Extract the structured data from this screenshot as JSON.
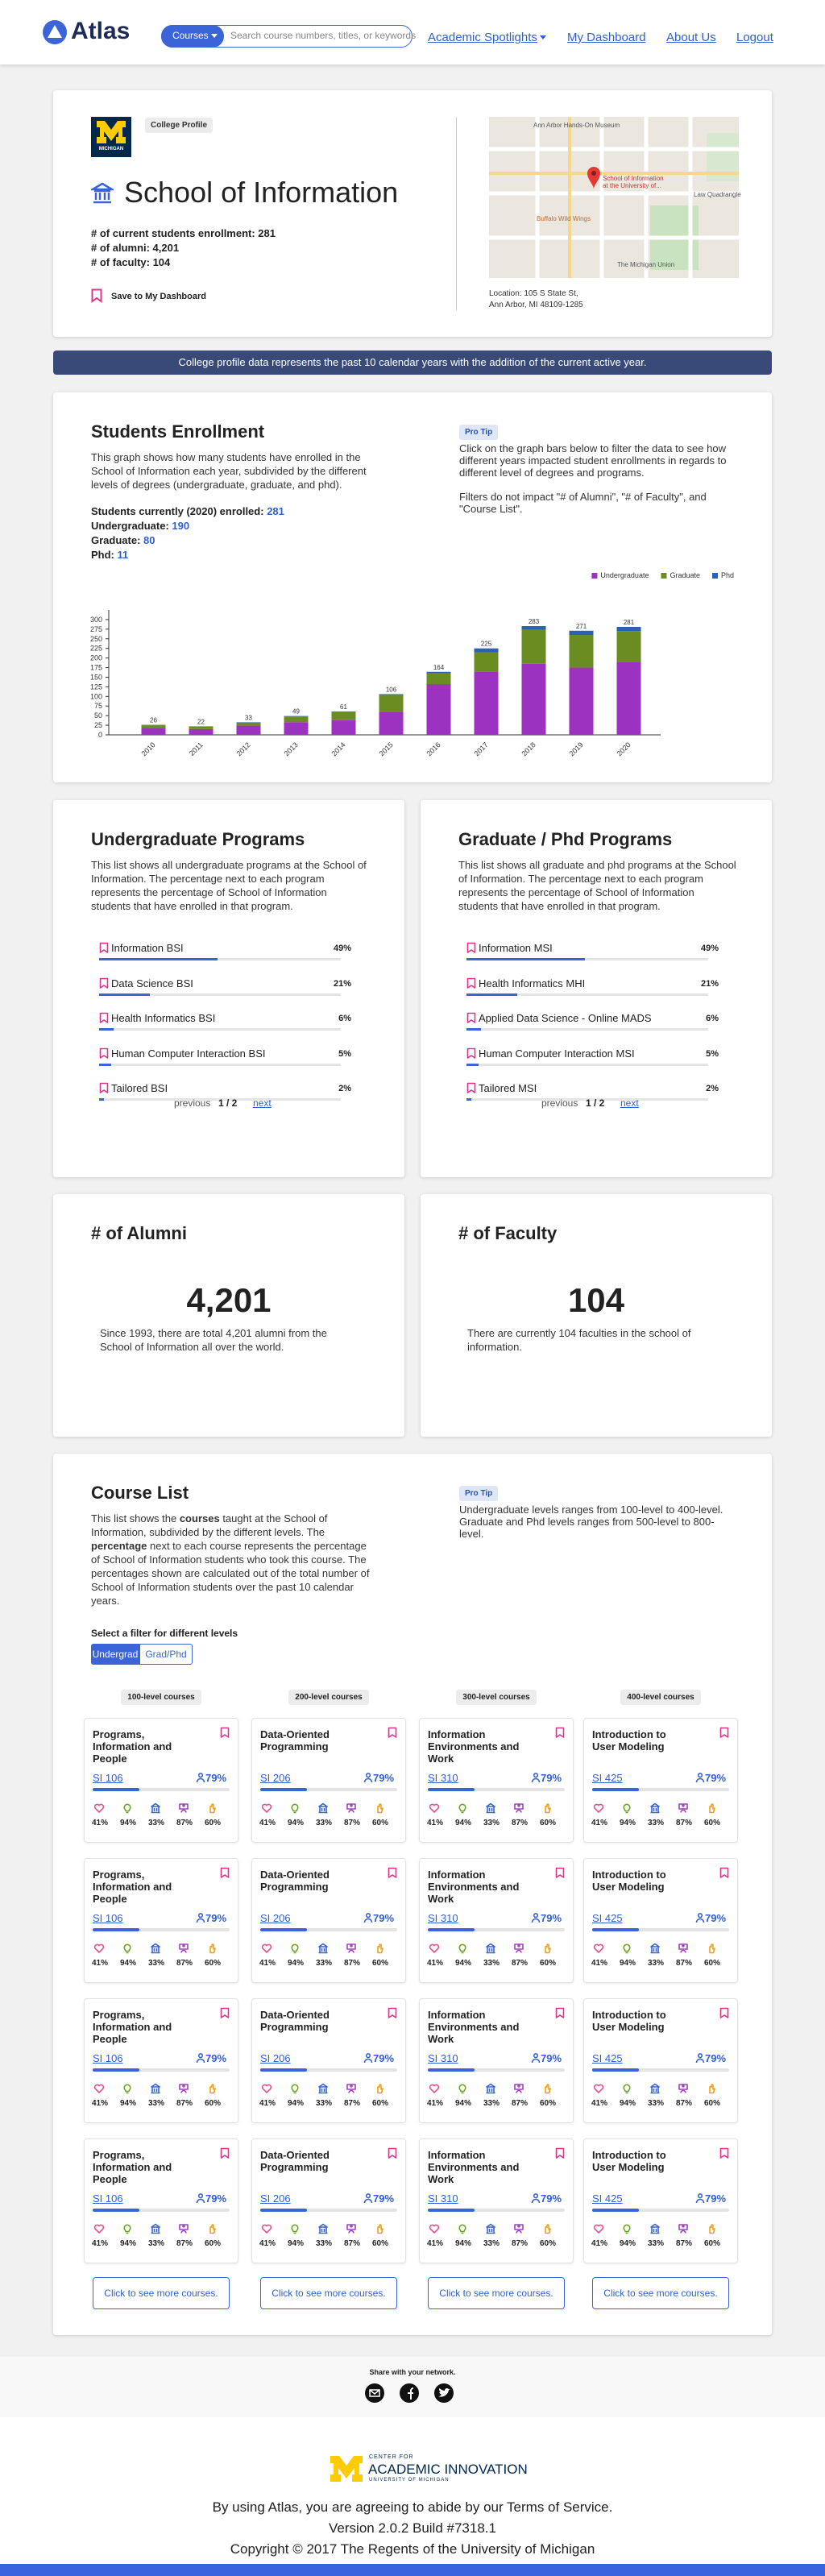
{
  "header": {
    "logo": "Atlas",
    "search_button": "Courses",
    "search_placeholder": "Search course numbers, titles, or keywords",
    "nav": [
      "Academic Spotlights",
      "My Dashboard",
      "About Us",
      "Logout"
    ]
  },
  "profile": {
    "logo_text": "MICHIGAN",
    "badge": "College Profile",
    "title": "School of Information",
    "stats": [
      "# of current students enrollment: 281",
      "# of alumni: 4,201",
      "# of faculty: 104"
    ],
    "save": "Save to My Dashboard",
    "map_labels": [
      "Ann Arbor Hands-On Museum",
      "School of Information at the University of...",
      "Buffalo Wild Wings",
      "The Michigan Union",
      "Law Quadrangle"
    ],
    "location": [
      "Location: 105 S State St,",
      "Ann Arbor, MI 48109-1285"
    ]
  },
  "banner": "College profile data represents the past 10 calendar years with the addition of the current active year.",
  "enrollment": {
    "title": "Students Enrollment",
    "description": "This graph shows how many students have enrolled in the School of Information each year, subdivided by the different levels of degrees (undergraduate, graduate, and phd).",
    "lines": [
      {
        "label": "Students currently (2020) enrolled:",
        "value": "281"
      },
      {
        "label": "Undergraduate:",
        "value": "190"
      },
      {
        "label": "Graduate:",
        "value": "80"
      },
      {
        "label": "Phd:",
        "value": "11"
      }
    ],
    "pro_tip": "Pro Tip",
    "tip": [
      "Click on the graph bars below to filter the data to see how different years impacted student enrollments in regards to different level of degrees and programs.",
      "Filters do not impact \"# of Alumni\", \"# of Faculty\", and \"Course List\"."
    ]
  },
  "chart_data": {
    "type": "bar",
    "stacked": true,
    "categories": [
      "2010",
      "2011",
      "2012",
      "2013",
      "2014",
      "2015",
      "2016",
      "2017",
      "2018",
      "2019",
      "2020"
    ],
    "series": [
      {
        "name": "Undergraduate",
        "color": "#9b32c0",
        "values": [
          18,
          15,
          24,
          33,
          38,
          60,
          132,
          165,
          185,
          175,
          190
        ]
      },
      {
        "name": "Graduate",
        "color": "#6b8c21",
        "values": [
          7,
          6,
          8,
          15,
          22,
          44,
          28,
          50,
          88,
          85,
          80
        ]
      },
      {
        "name": "Phd",
        "color": "#2d5fb4",
        "values": [
          1,
          1,
          1,
          1,
          1,
          2,
          4,
          10,
          10,
          11,
          11
        ]
      }
    ],
    "total_labels": [
      "26",
      "22",
      "33",
      "49",
      "61",
      "106",
      "164",
      "225",
      "283",
      "271",
      "281"
    ],
    "ylim": [
      0,
      325
    ],
    "yticks": [
      0,
      25,
      50,
      75,
      100,
      125,
      150,
      175,
      200,
      225,
      250,
      275,
      300
    ],
    "grid": false,
    "legend": "top-right"
  },
  "undergrad_programs": {
    "title": "Undergraduate Programs",
    "description": "This list shows all undergraduate programs at the School of Information. The percentage next to each program represents the percentage of School of Information students that have enrolled in that program.",
    "items": [
      {
        "name": "Information BSI",
        "percent": "49%"
      },
      {
        "name": "Data Science BSI",
        "percent": "21%"
      },
      {
        "name": "Health Informatics BSI",
        "percent": "6%"
      },
      {
        "name": "Human Computer Interaction BSI",
        "percent": "5%"
      },
      {
        "name": "Tailored BSI",
        "percent": "2%"
      }
    ],
    "pager": {
      "previous": "previous",
      "page": "1 / 2",
      "next": "next"
    }
  },
  "grad_programs": {
    "title": "Graduate / Phd Programs",
    "description": "This list shows all graduate and phd programs at the School of Information. The percentage next to each program represents the percentage of School of Information students that have enrolled in that program.",
    "items": [
      {
        "name": "Information MSI",
        "percent": "49%"
      },
      {
        "name": "Health Informatics MHI",
        "percent": "21%"
      },
      {
        "name": "Applied Data Science - Online MADS",
        "percent": "6%"
      },
      {
        "name": "Human Computer Interaction MSI",
        "percent": "5%"
      },
      {
        "name": "Tailored MSI",
        "percent": "2%"
      }
    ],
    "pager": {
      "previous": "previous",
      "page": "1 / 2",
      "next": "next"
    }
  },
  "alumni": {
    "title": "# of Alumni",
    "number": "4,201",
    "text": "Since 1993, there are total 4,201 alumni from the School of Information all over the world."
  },
  "faculty": {
    "title": "# of Faculty",
    "number": "104",
    "text": "There are currently 104 faculties in the school of information."
  },
  "course_list": {
    "title": "Course List",
    "description": [
      "This list shows the ",
      "courses",
      " taught at the School of Information, subdivided by the different levels. The ",
      "percentage",
      " next to each course represents the percentage of School of Information students who took this course. The percentages shown are calculated out of the total number of School of Information students over the past 10 calendar years."
    ],
    "pro_tip": "Pro Tip",
    "tip": "Undergraduate levels ranges from 100-level to 400-level. Graduate and Phd levels ranges from 500-level to 800-level.",
    "filter_label": "Select a filter for different levels",
    "filters": [
      "Undergrad",
      "Grad/Phd"
    ],
    "columns": [
      {
        "level": "100-level courses",
        "more": "Click to see more courses.",
        "cards": [
          {
            "title": "Programs, Information and People",
            "code": "SI 106",
            "percent": "79%",
            "stats": [
              "41%",
              "94%",
              "33%",
              "87%",
              "60%"
            ]
          },
          {
            "title": "Programs, Information and People",
            "code": "SI 106",
            "percent": "79%",
            "stats": [
              "41%",
              "94%",
              "33%",
              "87%",
              "60%"
            ]
          },
          {
            "title": "Programs, Information and People",
            "code": "SI 106",
            "percent": "79%",
            "stats": [
              "41%",
              "94%",
              "33%",
              "87%",
              "60%"
            ]
          },
          {
            "title": "Programs, Information and People",
            "code": "SI 106",
            "percent": "79%",
            "stats": [
              "41%",
              "94%",
              "33%",
              "87%",
              "60%"
            ]
          }
        ]
      },
      {
        "level": "200-level courses",
        "more": "Click to see more courses.",
        "cards": [
          {
            "title": "Data-Oriented Programming",
            "code": "SI 206",
            "percent": "79%",
            "stats": [
              "41%",
              "94%",
              "33%",
              "87%",
              "60%"
            ]
          },
          {
            "title": "Data-Oriented Programming",
            "code": "SI 206",
            "percent": "79%",
            "stats": [
              "41%",
              "94%",
              "33%",
              "87%",
              "60%"
            ]
          },
          {
            "title": "Data-Oriented Programming",
            "code": "SI 206",
            "percent": "79%",
            "stats": [
              "41%",
              "94%",
              "33%",
              "87%",
              "60%"
            ]
          },
          {
            "title": "Data-Oriented Programming",
            "code": "SI 206",
            "percent": "79%",
            "stats": [
              "41%",
              "94%",
              "33%",
              "87%",
              "60%"
            ]
          }
        ]
      },
      {
        "level": "300-level courses",
        "more": "Click to see more courses.",
        "cards": [
          {
            "title": "Information Environments and Work",
            "code": "SI 310",
            "percent": "79%",
            "stats": [
              "41%",
              "94%",
              "33%",
              "87%",
              "60%"
            ]
          },
          {
            "title": "Information Environments and Work",
            "code": "SI 310",
            "percent": "79%",
            "stats": [
              "41%",
              "94%",
              "33%",
              "87%",
              "60%"
            ]
          },
          {
            "title": "Information Environments and Work",
            "code": "SI 310",
            "percent": "79%",
            "stats": [
              "41%",
              "94%",
              "33%",
              "87%",
              "60%"
            ]
          },
          {
            "title": "Information Environments and Work",
            "code": "SI 310",
            "percent": "79%",
            "stats": [
              "41%",
              "94%",
              "33%",
              "87%",
              "60%"
            ]
          }
        ]
      },
      {
        "level": "400-level courses",
        "more": "Click to see more courses.",
        "cards": [
          {
            "title": "Introduction to User Modeling",
            "code": "SI 425",
            "percent": "79%",
            "stats": [
              "41%",
              "94%",
              "33%",
              "87%",
              "60%"
            ]
          },
          {
            "title": "Introduction to User Modeling",
            "code": "SI 425",
            "percent": "79%",
            "stats": [
              "41%",
              "94%",
              "33%",
              "87%",
              "60%"
            ]
          },
          {
            "title": "Introduction to User Modeling",
            "code": "SI 425",
            "percent": "79%",
            "stats": [
              "41%",
              "94%",
              "33%",
              "87%",
              "60%"
            ]
          },
          {
            "title": "Introduction to User Modeling",
            "code": "SI 425",
            "percent": "79%",
            "stats": [
              "41%",
              "94%",
              "33%",
              "87%",
              "60%"
            ]
          }
        ]
      }
    ]
  },
  "share": {
    "label": "Share with your network."
  },
  "footer": {
    "logo_top": "CENTER FOR",
    "logo_main": "ACADEMIC INNOVATION",
    "logo_sub": "UNIVERSITY OF MICHIGAN",
    "lines": [
      "By using Atlas, you are agreeing to abide by our Terms of Service.",
      "Version 2.0.2 Build #7318.1",
      "Copyright © 2017 The Regents of the University of Michigan"
    ]
  }
}
